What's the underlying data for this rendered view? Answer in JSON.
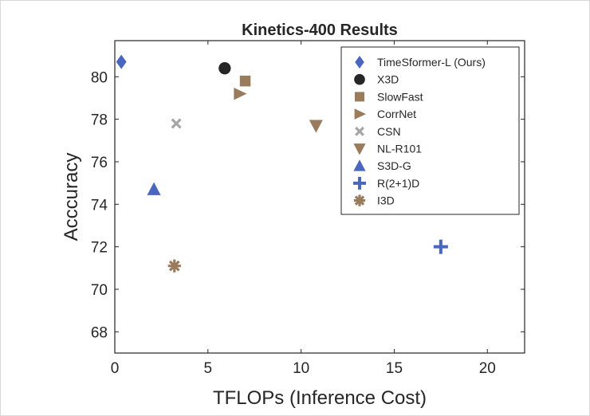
{
  "chart_data": {
    "type": "scatter",
    "title": "Kinetics-400 Results",
    "xlabel": "TFLOPs (Inference Cost)",
    "ylabel": "Acccuracy",
    "xlim": [
      0,
      22
    ],
    "ylim": [
      67,
      81.7
    ],
    "xticks": [
      0,
      5,
      10,
      15,
      20
    ],
    "yticks": [
      68,
      70,
      72,
      74,
      76,
      78,
      80
    ],
    "grid": false,
    "legend_position": "top-right",
    "series": [
      {
        "name": "TimeSformer-L (Ours)",
        "marker": "diamond",
        "color": "#4a67c0",
        "x": 0.35,
        "y": 80.7
      },
      {
        "name": "X3D",
        "marker": "circle",
        "color": "#262626",
        "x": 5.9,
        "y": 80.4
      },
      {
        "name": "SlowFast",
        "marker": "square",
        "color": "#9a7b5c",
        "x": 7.0,
        "y": 79.8
      },
      {
        "name": "CorrNet",
        "marker": "triangle-right",
        "color": "#9a7b5c",
        "x": 6.7,
        "y": 79.2
      },
      {
        "name": "CSN",
        "marker": "x",
        "color": "#a6a6a6",
        "x": 3.3,
        "y": 77.8
      },
      {
        "name": "NL-R101",
        "marker": "triangle-down",
        "color": "#9a7b5c",
        "x": 10.8,
        "y": 77.7
      },
      {
        "name": "S3D-G",
        "marker": "triangle-up",
        "color": "#4a67c0",
        "x": 2.1,
        "y": 74.7
      },
      {
        "name": "R(2+1)D",
        "marker": "plus",
        "color": "#4a67c0",
        "x": 17.5,
        "y": 72.0
      },
      {
        "name": "I3D",
        "marker": "asterisk",
        "color": "#9a7b5c",
        "x": 3.2,
        "y": 71.1
      }
    ]
  }
}
